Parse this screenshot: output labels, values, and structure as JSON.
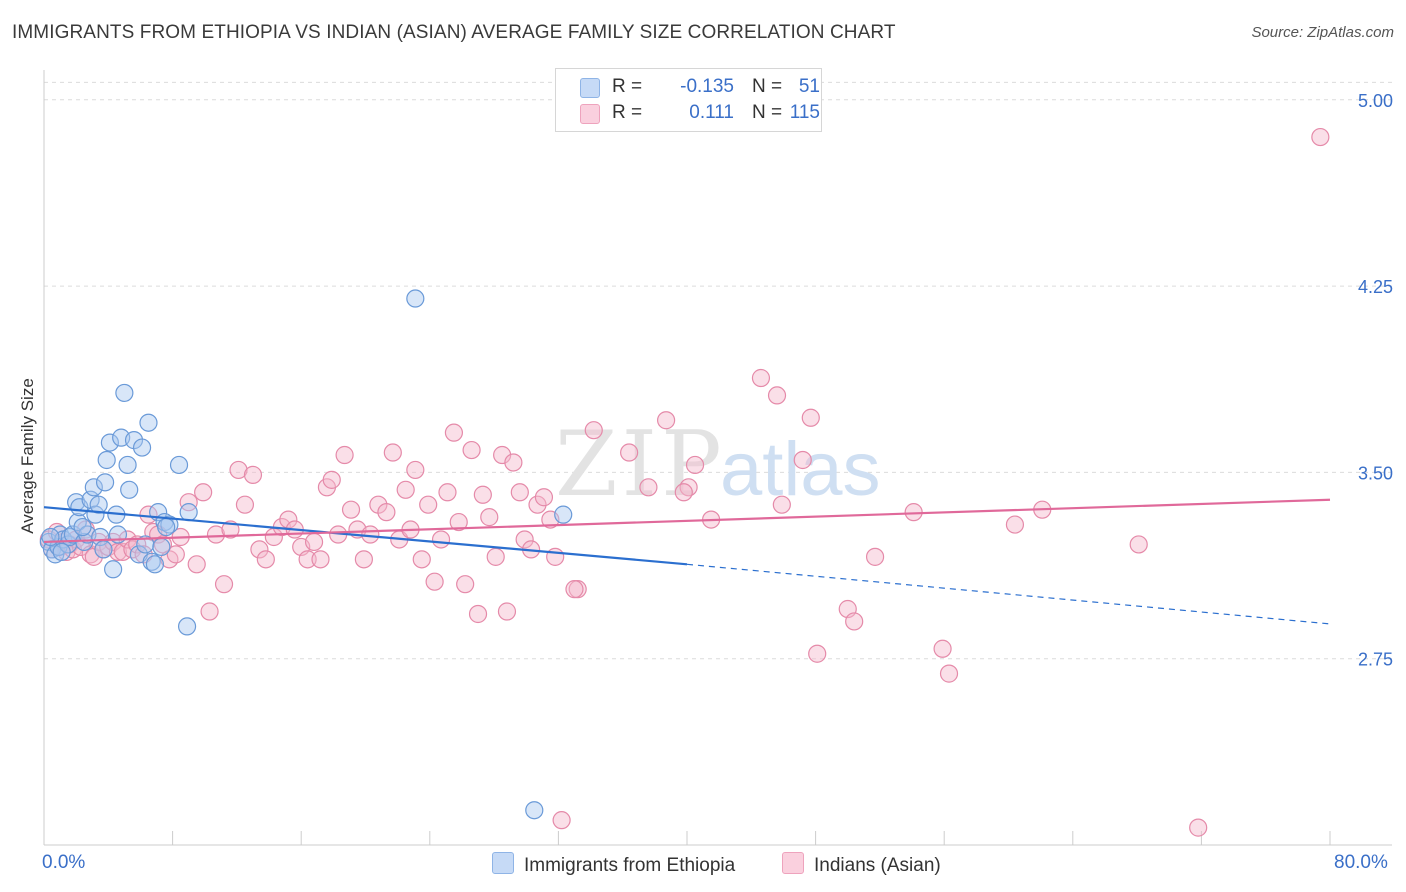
{
  "header": {
    "title": "IMMIGRANTS FROM ETHIOPIA VS INDIAN (ASIAN) AVERAGE FAMILY SIZE CORRELATION CHART",
    "source": "Source: ZipAtlas.com"
  },
  "watermark": {
    "zip": "ZIP",
    "atlas": "atlas"
  },
  "legend": {
    "r_label": "R =",
    "n_label": "N =",
    "rows": [
      {
        "r": "-0.135",
        "n": "51"
      },
      {
        "r": "0.111",
        "n": "115"
      }
    ]
  },
  "colors": {
    "blue_fill": "#a9c8f0",
    "blue_stroke": "#6a9ad8",
    "blue_line": "#2b6fcf",
    "pink_fill": "#f5b7cc",
    "pink_stroke": "#e58aa9",
    "pink_line": "#e0699a",
    "tick_text": "#3a6fc8",
    "grid": "#dcdcdc"
  },
  "chart_data": {
    "type": "scatter",
    "title": "IMMIGRANTS FROM ETHIOPIA VS INDIAN (ASIAN) AVERAGE FAMILY SIZE CORRELATION CHART",
    "xlabel": "",
    "ylabel": "Average Family Size",
    "xlim": [
      0,
      80
    ],
    "ylim": [
      2.0,
      5.12
    ],
    "x_tick_labels": [
      "0.0%",
      "80.0%"
    ],
    "y_ticks": [
      2.75,
      3.5,
      4.25,
      5.0
    ],
    "y_tick_labels": [
      "2.75",
      "3.50",
      "4.25",
      "5.00"
    ],
    "grid": true,
    "legend_position": "top-center",
    "series": [
      {
        "name": "Immigrants from Ethiopia",
        "color": "#a9c8f0",
        "r": -0.135,
        "n": 51,
        "trend": {
          "x0": 0,
          "y0": 3.36,
          "x1": 40,
          "y1": 3.13,
          "dash_to_x": 80,
          "dash_to_y": 2.89
        },
        "points": [
          [
            0.3,
            3.22
          ],
          [
            0.5,
            3.19
          ],
          [
            0.7,
            3.17
          ],
          [
            0.9,
            3.2
          ],
          [
            1.0,
            3.25
          ],
          [
            1.2,
            3.23
          ],
          [
            1.5,
            3.21
          ],
          [
            1.6,
            3.24
          ],
          [
            1.8,
            3.25
          ],
          [
            2.0,
            3.38
          ],
          [
            2.1,
            3.3
          ],
          [
            2.2,
            3.36
          ],
          [
            2.5,
            3.22
          ],
          [
            2.7,
            3.25
          ],
          [
            2.9,
            3.39
          ],
          [
            3.1,
            3.44
          ],
          [
            3.2,
            3.33
          ],
          [
            3.4,
            3.37
          ],
          [
            3.5,
            3.24
          ],
          [
            3.7,
            3.19
          ],
          [
            3.8,
            3.46
          ],
          [
            3.9,
            3.55
          ],
          [
            4.1,
            3.62
          ],
          [
            4.3,
            3.11
          ],
          [
            4.5,
            3.33
          ],
          [
            4.6,
            3.25
          ],
          [
            4.8,
            3.64
          ],
          [
            5.0,
            3.82
          ],
          [
            5.2,
            3.53
          ],
          [
            5.3,
            3.43
          ],
          [
            5.6,
            3.63
          ],
          [
            5.9,
            3.17
          ],
          [
            6.1,
            3.6
          ],
          [
            6.3,
            3.21
          ],
          [
            6.5,
            3.7
          ],
          [
            6.7,
            3.14
          ],
          [
            6.9,
            3.13
          ],
          [
            7.1,
            3.34
          ],
          [
            7.3,
            3.2
          ],
          [
            7.5,
            3.3
          ],
          [
            7.8,
            3.29
          ],
          [
            8.4,
            3.53
          ],
          [
            9.0,
            3.34
          ],
          [
            8.9,
            2.88
          ],
          [
            23.1,
            4.2
          ],
          [
            32.3,
            3.33
          ],
          [
            30.5,
            2.14
          ],
          [
            0.4,
            3.24
          ],
          [
            1.1,
            3.18
          ],
          [
            2.4,
            3.28
          ],
          [
            7.6,
            3.28
          ]
        ]
      },
      {
        "name": "Indians (Asian)",
        "color": "#f5b7cc",
        "r": 0.111,
        "n": 115,
        "trend": {
          "x0": 0,
          "y0": 3.22,
          "x1": 80,
          "y1": 3.39
        },
        "points": [
          [
            0.3,
            3.23
          ],
          [
            0.5,
            3.19
          ],
          [
            0.8,
            3.26
          ],
          [
            1.0,
            3.2
          ],
          [
            1.2,
            3.22
          ],
          [
            1.4,
            3.18
          ],
          [
            1.6,
            3.21
          ],
          [
            1.8,
            3.19
          ],
          [
            2.0,
            3.23
          ],
          [
            2.3,
            3.2
          ],
          [
            2.6,
            3.27
          ],
          [
            2.9,
            3.17
          ],
          [
            3.1,
            3.16
          ],
          [
            3.4,
            3.22
          ],
          [
            3.7,
            3.19
          ],
          [
            4.0,
            3.2
          ],
          [
            4.3,
            3.22
          ],
          [
            4.6,
            3.18
          ],
          [
            4.9,
            3.18
          ],
          [
            5.2,
            3.23
          ],
          [
            5.5,
            3.19
          ],
          [
            5.8,
            3.21
          ],
          [
            6.2,
            3.17
          ],
          [
            6.5,
            3.33
          ],
          [
            6.8,
            3.26
          ],
          [
            7.1,
            3.25
          ],
          [
            7.4,
            3.21
          ],
          [
            7.8,
            3.15
          ],
          [
            8.2,
            3.17
          ],
          [
            8.5,
            3.24
          ],
          [
            9.0,
            3.38
          ],
          [
            9.5,
            3.13
          ],
          [
            9.9,
            3.42
          ],
          [
            10.3,
            2.94
          ],
          [
            10.7,
            3.25
          ],
          [
            11.2,
            3.05
          ],
          [
            11.6,
            3.27
          ],
          [
            12.1,
            3.51
          ],
          [
            12.5,
            3.37
          ],
          [
            13.0,
            3.49
          ],
          [
            13.4,
            3.19
          ],
          [
            13.8,
            3.15
          ],
          [
            14.3,
            3.24
          ],
          [
            14.8,
            3.28
          ],
          [
            15.2,
            3.31
          ],
          [
            15.6,
            3.27
          ],
          [
            16.0,
            3.2
          ],
          [
            16.4,
            3.15
          ],
          [
            16.8,
            3.22
          ],
          [
            17.2,
            3.15
          ],
          [
            17.6,
            3.44
          ],
          [
            17.9,
            3.47
          ],
          [
            18.3,
            3.25
          ],
          [
            18.7,
            3.57
          ],
          [
            19.1,
            3.35
          ],
          [
            19.5,
            3.27
          ],
          [
            19.9,
            3.15
          ],
          [
            20.3,
            3.25
          ],
          [
            20.8,
            3.37
          ],
          [
            21.3,
            3.34
          ],
          [
            21.7,
            3.58
          ],
          [
            22.1,
            3.23
          ],
          [
            22.5,
            3.43
          ],
          [
            22.8,
            3.27
          ],
          [
            23.1,
            3.51
          ],
          [
            23.5,
            3.15
          ],
          [
            23.9,
            3.37
          ],
          [
            24.3,
            3.06
          ],
          [
            24.7,
            3.23
          ],
          [
            25.1,
            3.42
          ],
          [
            25.5,
            3.66
          ],
          [
            25.8,
            3.3
          ],
          [
            26.2,
            3.05
          ],
          [
            26.6,
            3.59
          ],
          [
            27.0,
            2.93
          ],
          [
            27.3,
            3.41
          ],
          [
            27.7,
            3.32
          ],
          [
            28.1,
            3.16
          ],
          [
            28.5,
            3.57
          ],
          [
            28.8,
            2.94
          ],
          [
            29.2,
            3.54
          ],
          [
            29.6,
            3.42
          ],
          [
            29.9,
            3.23
          ],
          [
            30.3,
            3.19
          ],
          [
            30.7,
            3.37
          ],
          [
            31.1,
            3.4
          ],
          [
            31.5,
            3.31
          ],
          [
            31.8,
            3.16
          ],
          [
            32.2,
            2.1
          ],
          [
            33.2,
            3.03
          ],
          [
            34.2,
            3.67
          ],
          [
            36.4,
            3.58
          ],
          [
            37.6,
            3.44
          ],
          [
            38.7,
            3.71
          ],
          [
            40.1,
            3.44
          ],
          [
            40.5,
            3.53
          ],
          [
            41.5,
            3.31
          ],
          [
            44.6,
            3.88
          ],
          [
            45.6,
            3.81
          ],
          [
            45.9,
            3.37
          ],
          [
            47.2,
            3.55
          ],
          [
            47.7,
            3.72
          ],
          [
            48.1,
            2.77
          ],
          [
            50.0,
            2.95
          ],
          [
            50.4,
            2.9
          ],
          [
            51.7,
            3.16
          ],
          [
            54.1,
            3.34
          ],
          [
            55.9,
            2.79
          ],
          [
            56.3,
            2.69
          ],
          [
            60.4,
            3.29
          ],
          [
            62.1,
            3.35
          ],
          [
            68.1,
            3.21
          ],
          [
            79.4,
            4.85
          ],
          [
            71.8,
            2.07
          ],
          [
            33.0,
            3.03
          ],
          [
            39.8,
            3.42
          ]
        ]
      }
    ]
  },
  "bottom_legend": [
    {
      "label": "Immigrants from Ethiopia"
    },
    {
      "label": "Indians (Asian)"
    }
  ]
}
